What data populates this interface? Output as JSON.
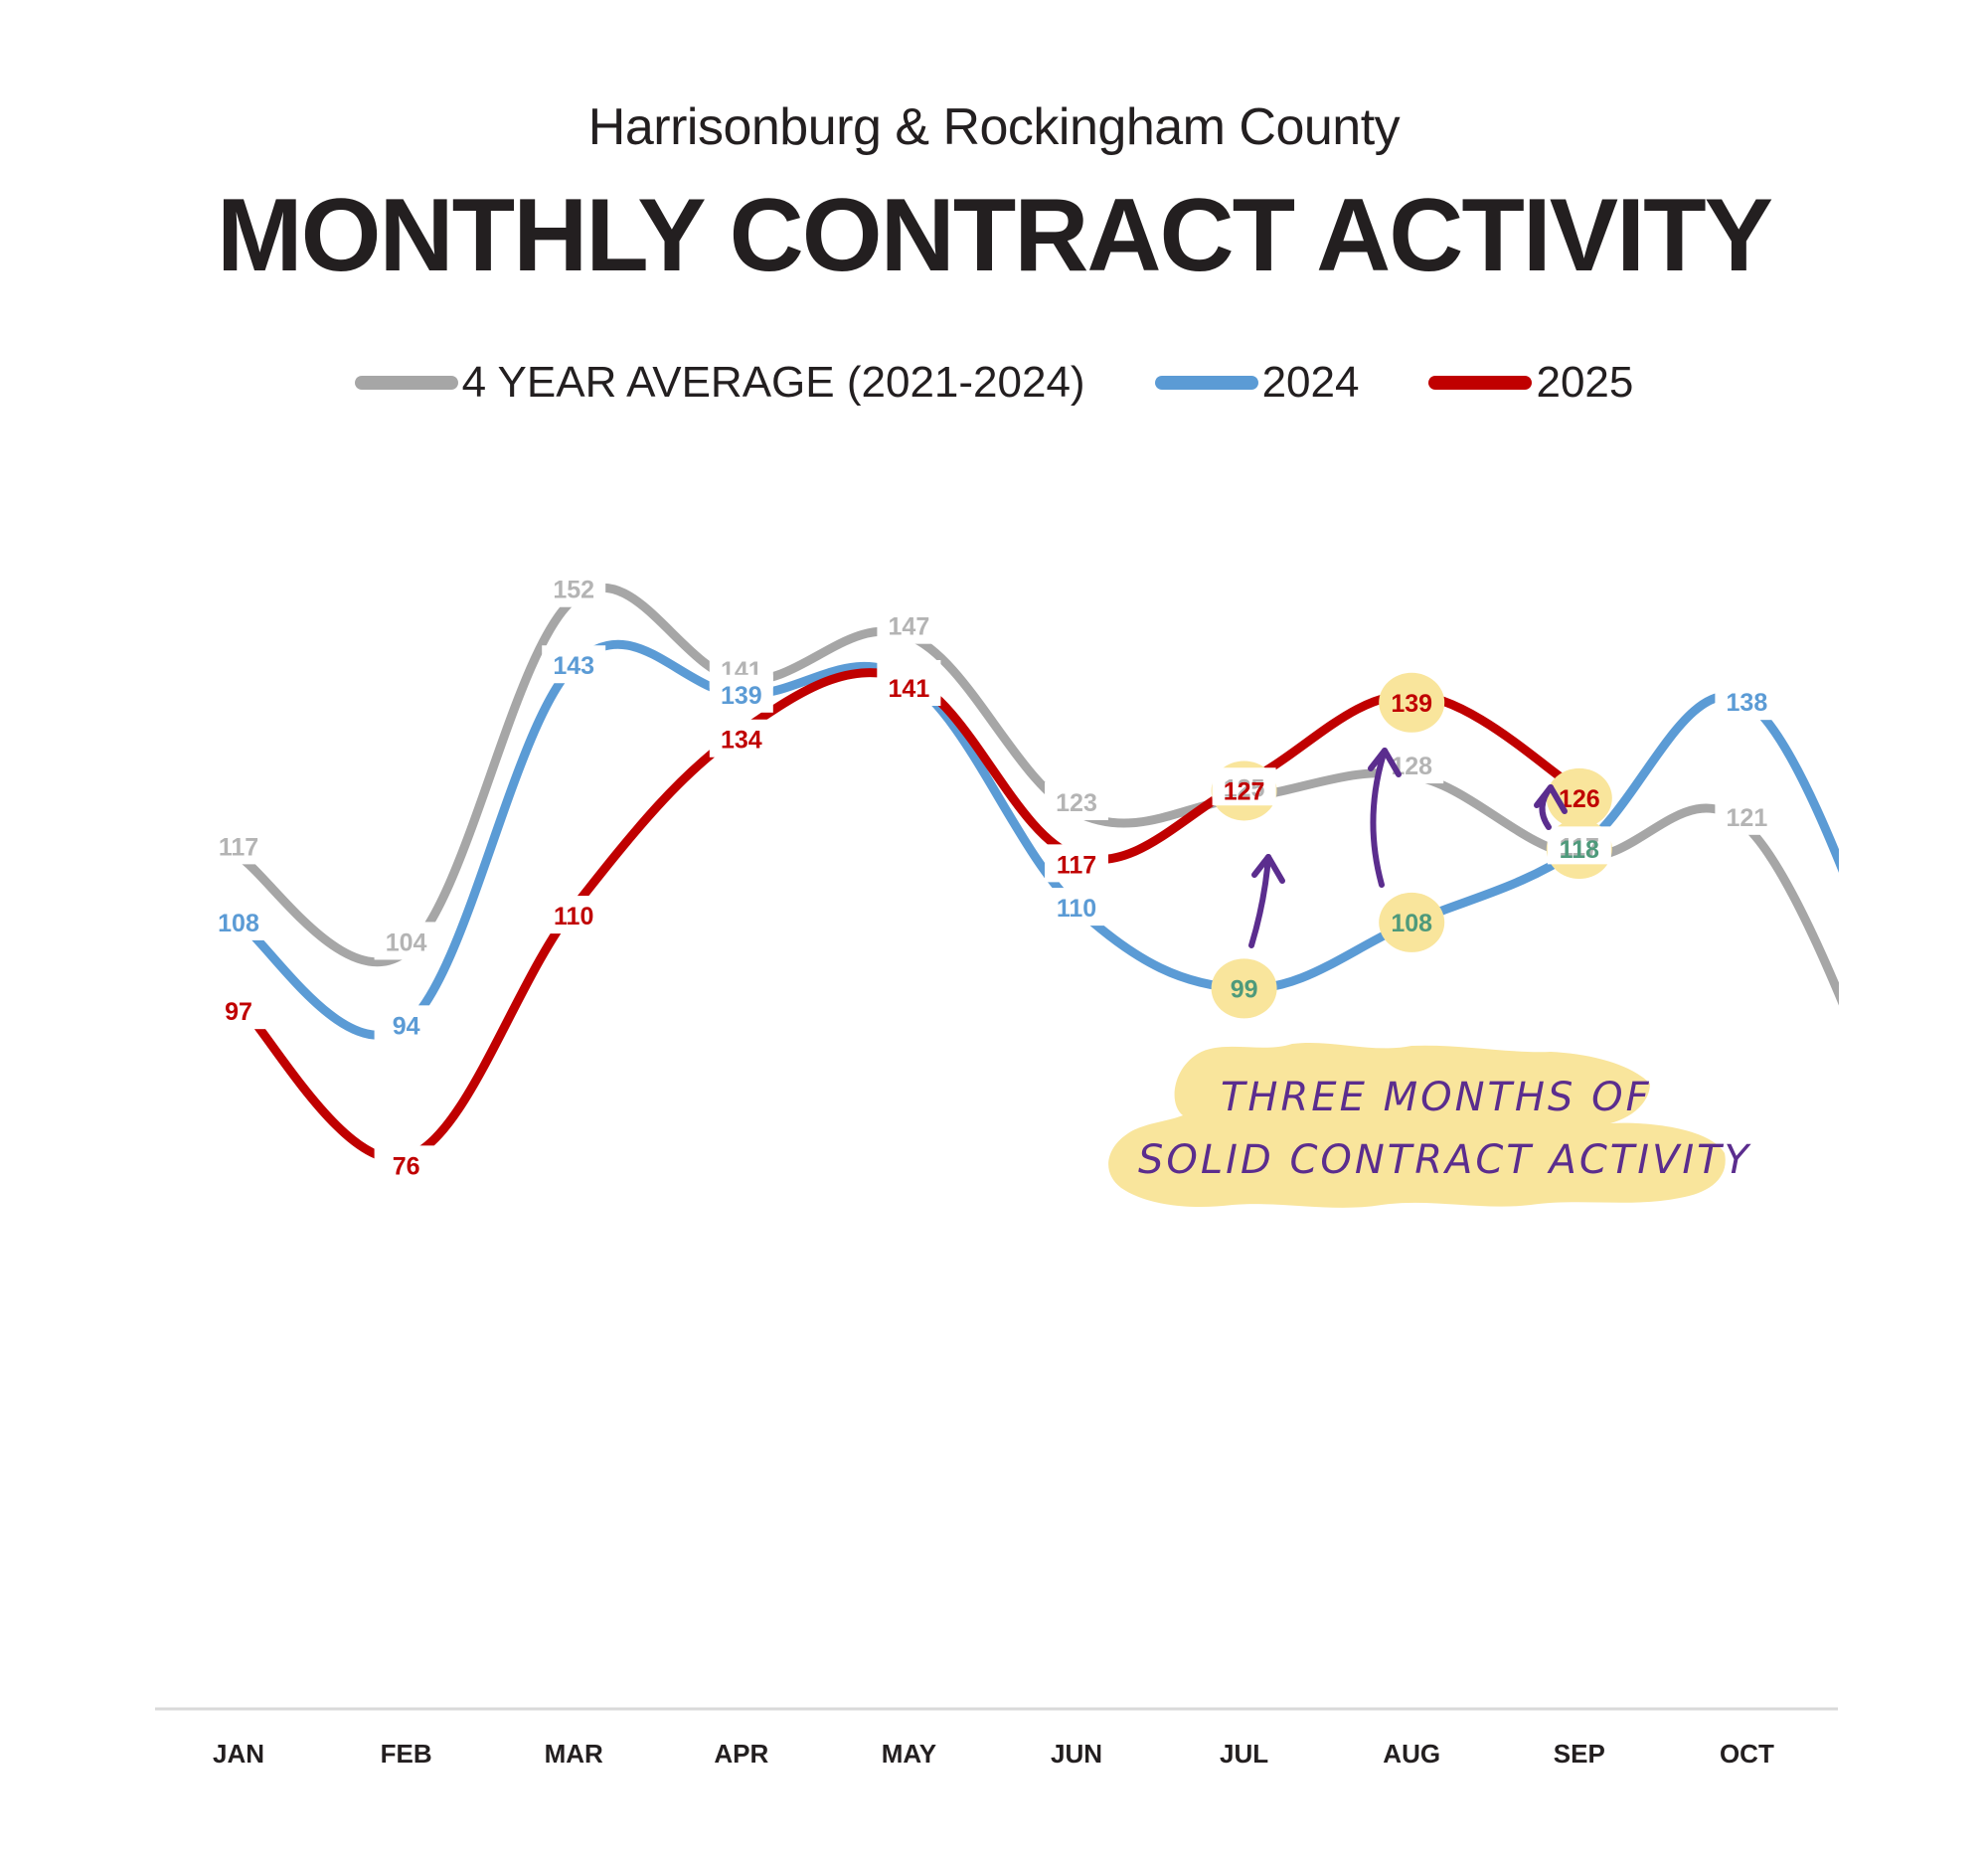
{
  "header": {
    "subtitle": "Harrisonburg & Rockingham County",
    "title": "MONTHLY CONTRACT ACTIVITY"
  },
  "legend": [
    {
      "label": "4 YEAR AVERAGE (2021-2024)",
      "color": "#a6a6a6"
    },
    {
      "label": "2024",
      "color": "#5b9bd5"
    },
    {
      "label": "2025",
      "color": "#c00000"
    }
  ],
  "annotation": {
    "line1": "THREE MONTHS OF",
    "line2": "SOLID CONTRACT ACTIVITY",
    "highlight_color": "#f9e59c",
    "text_color": "#5b2d8e",
    "highlighted_value_color": "#4e9a7b"
  },
  "chart_data": {
    "type": "line",
    "title": "MONTHLY CONTRACT ACTIVITY",
    "subtitle": "Harrisonburg & Rockingham County",
    "xlabel": "",
    "ylabel": "",
    "categories": [
      "JAN",
      "FEB",
      "MAR",
      "APR",
      "MAY",
      "JUN",
      "JUL",
      "AUG",
      "SEP",
      "OCT"
    ],
    "ylim": [
      0,
      160
    ],
    "grid": false,
    "legend_position": "top-center",
    "smoothed": true,
    "series": [
      {
        "name": "4 YEAR AVERAGE (2021-2024)",
        "color": "#a6a6a6",
        "label_color": "#b4b4b4",
        "values": [
          117,
          104,
          152,
          141,
          147,
          123,
          125,
          128,
          117,
          121
        ],
        "continues_past_last_category": "declining"
      },
      {
        "name": "2024",
        "color": "#5b9bd5",
        "label_color": "#5b9bd5",
        "values": [
          108,
          94,
          143,
          139,
          141,
          110,
          99,
          108,
          118,
          138
        ],
        "continues_past_last_category": "declining"
      },
      {
        "name": "2025",
        "color": "#c00000",
        "label_color": "#c00000",
        "values": [
          97,
          76,
          110,
          134,
          141,
          117,
          127,
          139,
          126,
          null
        ]
      }
    ],
    "highlighted_points": [
      {
        "series": "2025",
        "month": "JUL",
        "value": 127
      },
      {
        "series": "2025",
        "month": "AUG",
        "value": 139
      },
      {
        "series": "2025",
        "month": "SEP",
        "value": 126
      },
      {
        "series": "2024",
        "month": "JUL",
        "value": 99
      },
      {
        "series": "2024",
        "month": "AUG",
        "value": 108
      },
      {
        "series": "2024",
        "month": "SEP",
        "value": 118
      }
    ],
    "annotations": [
      "THREE MONTHS OF SOLID CONTRACT ACTIVITY"
    ]
  }
}
